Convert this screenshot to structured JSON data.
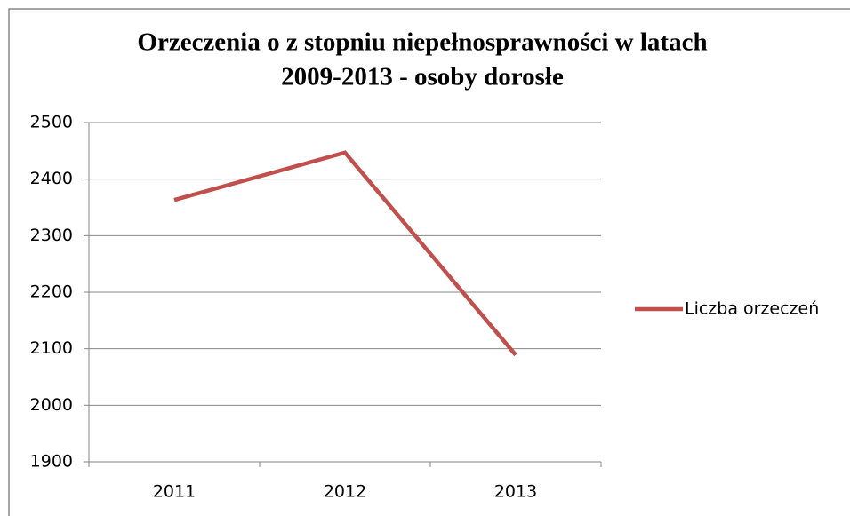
{
  "chart_data": {
    "type": "line",
    "title": [
      "Orzeczenia o z stopniu niepełnosprawności w latach",
      "2009-2013 - osoby dorosłe"
    ],
    "categories": [
      "2011",
      "2012",
      "2013"
    ],
    "series": [
      {
        "name": "Liczba orzeczeń",
        "color": "#c0504d",
        "values": [
          2363,
          2447,
          2089
        ]
      }
    ],
    "ylim": [
      1900,
      2500
    ],
    "yticks": [
      1900,
      2000,
      2100,
      2200,
      2300,
      2400,
      2500
    ],
    "grid": true,
    "legend": "right"
  }
}
